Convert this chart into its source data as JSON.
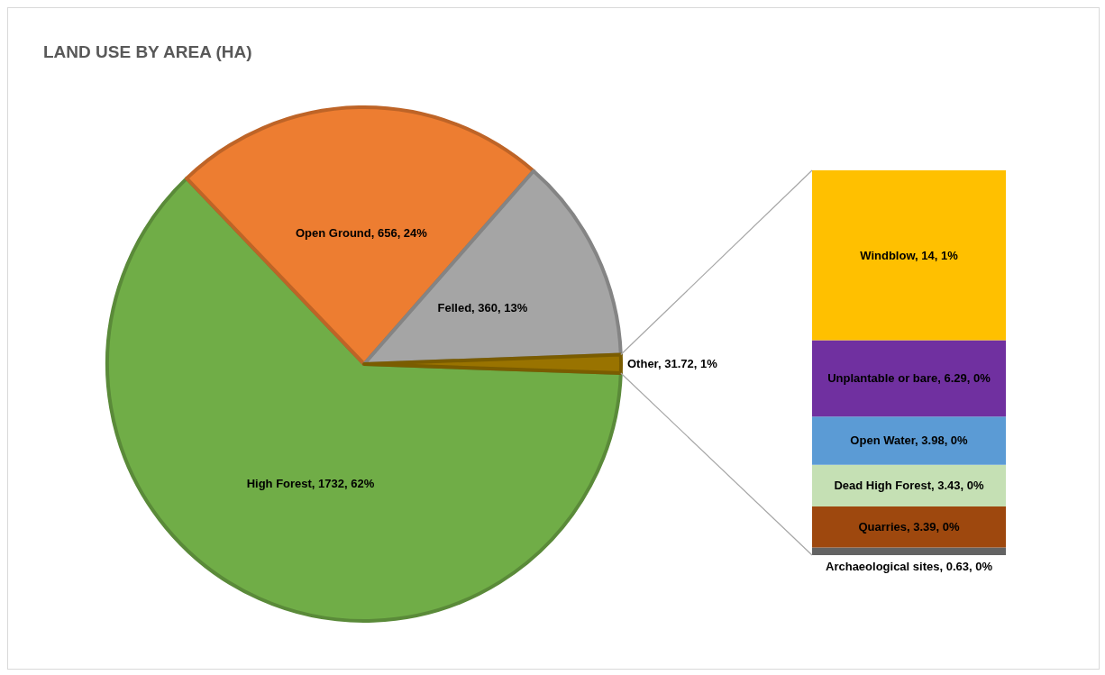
{
  "chart_data": [
    {
      "type": "pie",
      "title": "LAND USE BY AREA (HA)",
      "categories": [
        "High Forest",
        "Open Ground",
        "Felled",
        "Other"
      ],
      "values": [
        1732,
        656,
        360,
        31.72
      ],
      "colors": [
        "#70ad47",
        "#ed7d31",
        "#a5a5a5",
        "#997300"
      ],
      "value_labels": [
        "1732, 62%",
        "656, 24%",
        "360, 13%",
        "31.72, 1%"
      ]
    },
    {
      "type": "bar",
      "stacked": true,
      "categories": [
        null
      ],
      "tick_labels": false,
      "series": [
        {
          "color": "#636363",
          "values": [
            0.63
          ],
          "value_labels": [
            "Archaeological sites, 0.63, 0%"
          ]
        },
        {
          "color": "#9e480e",
          "values": [
            3.39
          ],
          "value_labels": [
            "Quarries, 3.39, 0%"
          ]
        },
        {
          "color": "#c5e0b4",
          "values": [
            3.43
          ],
          "value_labels": [
            "Dead High Forest, 3.43, 0%"
          ]
        },
        {
          "color": "#5b9bd5",
          "values": [
            3.98
          ],
          "value_labels": [
            "Open Water, 3.98, 0%"
          ]
        },
        {
          "color": "#7030a0",
          "values": [
            6.29
          ],
          "value_labels": [
            "Unplantable or bare, 6.29, 0%"
          ]
        },
        {
          "color": "#ffc000",
          "values": [
            14
          ],
          "value_labels": [
            "Windblow, 14, 1%"
          ]
        }
      ]
    }
  ]
}
